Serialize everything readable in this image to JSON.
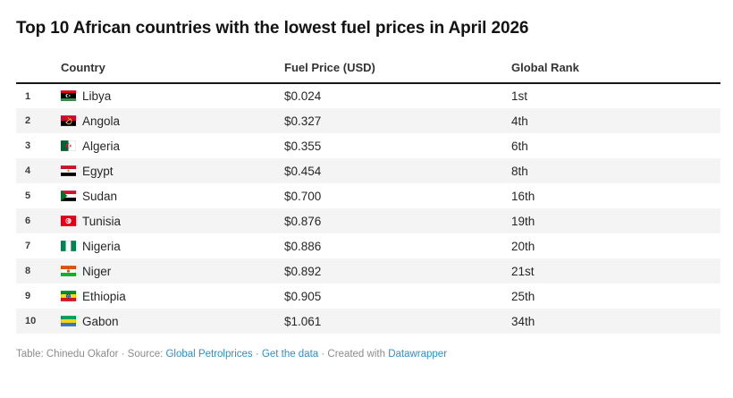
{
  "header": {
    "title": "Top 10 African countries with the lowest fuel prices in April 2026"
  },
  "table": {
    "columns": [
      "Country",
      "Fuel Price (USD)",
      "Global Rank"
    ],
    "rows": [
      {
        "num": "1",
        "flag": "libya",
        "country": "Libya",
        "price": "$0.024",
        "rank": "1st"
      },
      {
        "num": "2",
        "flag": "angola",
        "country": "Angola",
        "price": "$0.327",
        "rank": "4th"
      },
      {
        "num": "3",
        "flag": "algeria",
        "country": "Algeria",
        "price": "$0.355",
        "rank": "6th"
      },
      {
        "num": "4",
        "flag": "egypt",
        "country": "Egypt",
        "price": "$0.454",
        "rank": "8th"
      },
      {
        "num": "5",
        "flag": "sudan",
        "country": "Sudan",
        "price": "$0.700",
        "rank": "16th"
      },
      {
        "num": "6",
        "flag": "tunisia",
        "country": "Tunisia",
        "price": "$0.876",
        "rank": "19th"
      },
      {
        "num": "7",
        "flag": "nigeria",
        "country": "Nigeria",
        "price": "$0.886",
        "rank": "20th"
      },
      {
        "num": "8",
        "flag": "niger",
        "country": "Niger",
        "price": "$0.892",
        "rank": "21st"
      },
      {
        "num": "9",
        "flag": "ethiopia",
        "country": "Ethiopia",
        "price": "$0.905",
        "rank": "25th"
      },
      {
        "num": "10",
        "flag": "gabon",
        "country": "Gabon",
        "price": "$1.061",
        "rank": "34th"
      }
    ]
  },
  "footer": {
    "prefix": "Table: Chinedu Okafor · Source:",
    "source_link": "Global Petrolprices",
    "dot": "·",
    "data_link": "Get the data",
    "middle": "· Created with",
    "creator_link": "Datawrapper"
  },
  "colors": {
    "link_blue": "#2e8fc9",
    "stripe_gray": "#f4f4f4",
    "header_rule": "#181818",
    "footer_gray": "#8c8c8c"
  },
  "chart_data": {
    "type": "table",
    "title": "Top 10 African countries with the lowest fuel prices in April 2026",
    "columns": [
      "Country",
      "Fuel Price (USD)",
      "Global Rank"
    ],
    "rows": [
      [
        "Libya",
        0.024,
        "1st"
      ],
      [
        "Angola",
        0.327,
        "4th"
      ],
      [
        "Algeria",
        0.355,
        "6th"
      ],
      [
        "Egypt",
        0.454,
        "8th"
      ],
      [
        "Sudan",
        0.7,
        "16th"
      ],
      [
        "Tunisia",
        0.876,
        "19th"
      ],
      [
        "Nigeria",
        0.886,
        "20th"
      ],
      [
        "Niger",
        0.892,
        "21st"
      ],
      [
        "Ethiopia",
        0.905,
        "25th"
      ],
      [
        "Gabon",
        1.061,
        "34th"
      ]
    ],
    "layout_hints": {
      "striped_rows": "even",
      "rank_numbers_shown": true,
      "flags_shown": true
    }
  }
}
